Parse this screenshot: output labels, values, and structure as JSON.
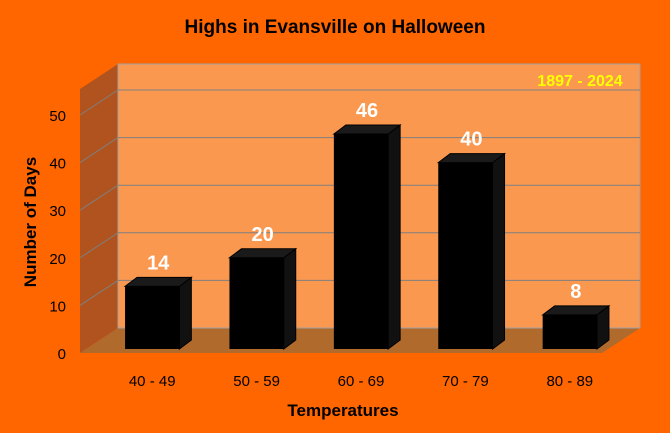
{
  "colors": {
    "background": "#ff6600",
    "wall": "#fb9850",
    "wall_side": "#b0531e",
    "floor": "#b06a2c",
    "bar": "#000000",
    "bar_label": "#ffffff",
    "annotation": "#ffff00",
    "title": "#000000",
    "gridline": "#7f7f7f"
  },
  "chart_data": {
    "type": "bar",
    "title": "Highs in Evansville on Halloween",
    "annotation": "1897 - 2024",
    "xlabel": "Temperatures",
    "ylabel": "Number of Days",
    "categories": [
      "40 - 49",
      "50 - 59",
      "60 - 69",
      "70 - 79",
      "80 - 89"
    ],
    "values": [
      14,
      20,
      46,
      40,
      8
    ],
    "ylim": [
      0,
      50
    ],
    "yticks": [
      0,
      10,
      20,
      30,
      40,
      50
    ],
    "grid": true,
    "legend": "none",
    "style": "3d-column"
  }
}
